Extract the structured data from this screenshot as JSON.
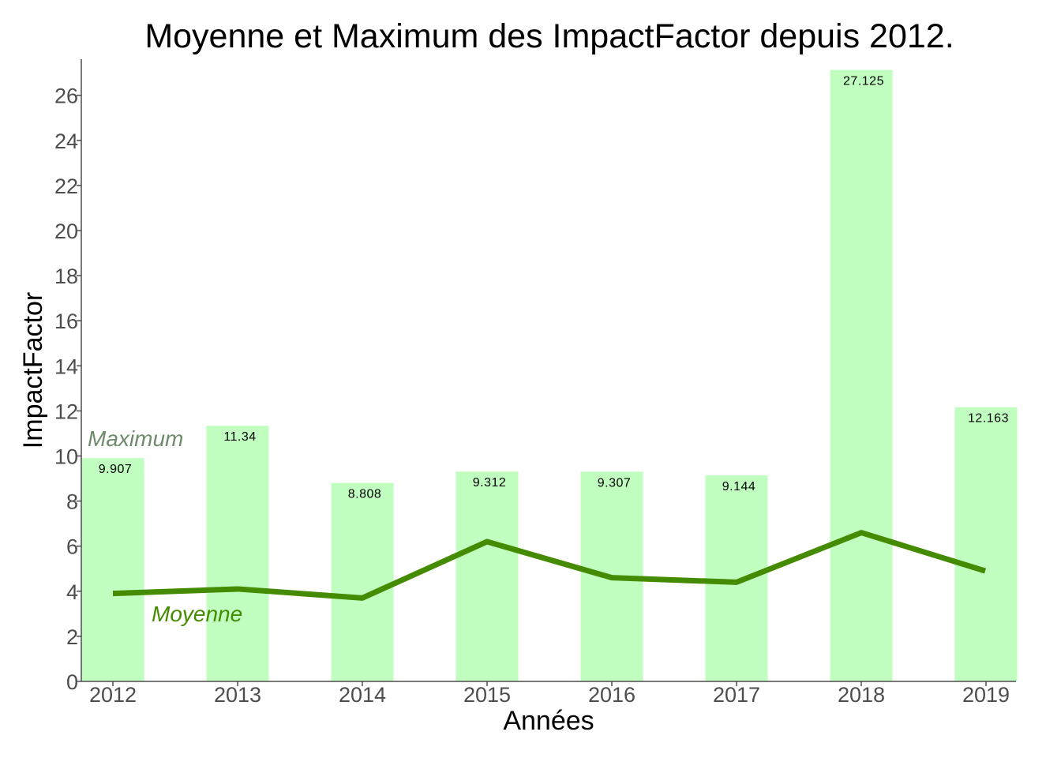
{
  "chart_data": {
    "type": "bar",
    "title": "Moyenne et Maximum des ImpactFactor depuis 2012.",
    "xlabel": "Années",
    "ylabel": "ImpactFactor",
    "categories": [
      "2012",
      "2013",
      "2014",
      "2015",
      "2016",
      "2017",
      "2018",
      "2019"
    ],
    "ylim": [
      0,
      27.6
    ],
    "yticks": [
      0,
      2,
      4,
      6,
      8,
      10,
      12,
      14,
      16,
      18,
      20,
      22,
      24,
      26
    ],
    "grid": false,
    "series": [
      {
        "name": "Maximum",
        "kind": "bar",
        "color": "#c1ffc1",
        "values": [
          9.907,
          11.34,
          8.808,
          9.312,
          9.307,
          9.144,
          27.125,
          12.163
        ],
        "labels": [
          "9.907",
          "11.34",
          "8.808",
          "9.312",
          "9.307",
          "9.144",
          "27.125",
          "12.163"
        ]
      },
      {
        "name": "Moyenne",
        "kind": "line",
        "color": "#458b00",
        "values": [
          3.9,
          4.1,
          3.7,
          6.2,
          4.6,
          4.4,
          6.6,
          4.9
        ]
      }
    ],
    "annotations": [
      {
        "text": "Maximum",
        "color": "#6e8b6e"
      },
      {
        "text": "Moyenne",
        "color": "#458b00"
      }
    ]
  }
}
